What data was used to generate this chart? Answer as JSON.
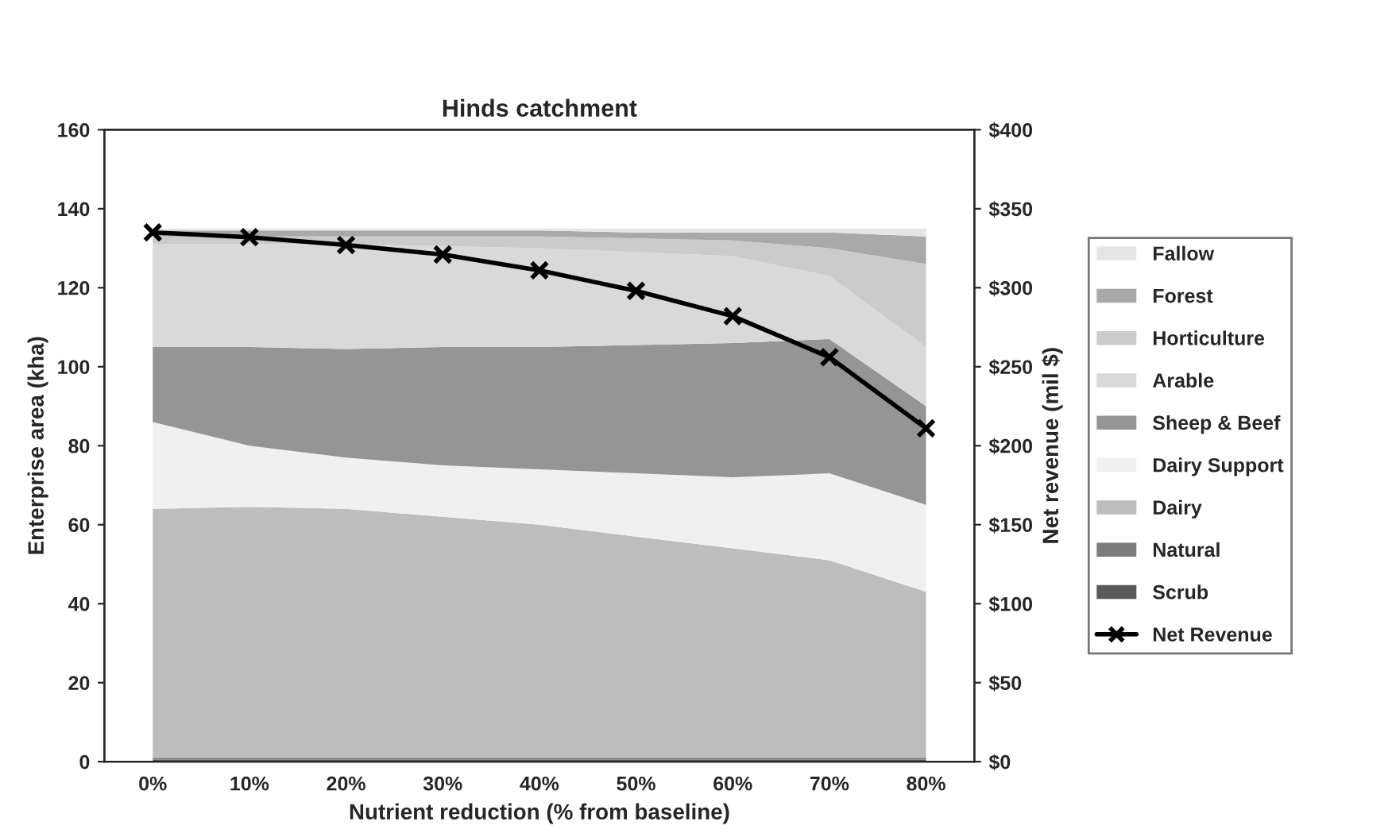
{
  "chart_data": {
    "type": "area",
    "stacked": true,
    "title": "Hinds catchment",
    "xlabel": "Nutrient reduction (% from baseline)",
    "ylabel": "Enterprise area (kha)",
    "y2label": "Net revenue (mil $)",
    "categories": [
      "0%",
      "10%",
      "20%",
      "30%",
      "40%",
      "50%",
      "60%",
      "70%",
      "80%"
    ],
    "ylim": [
      0,
      160
    ],
    "yticks": [
      0,
      20,
      40,
      60,
      80,
      100,
      120,
      140,
      160
    ],
    "y2lim": [
      0,
      400
    ],
    "y2ticks": [
      {
        "value": 0,
        "label": "$0"
      },
      {
        "value": 50,
        "label": "$50"
      },
      {
        "value": 100,
        "label": "$100"
      },
      {
        "value": 150,
        "label": "$150"
      },
      {
        "value": 200,
        "label": "$200"
      },
      {
        "value": 250,
        "label": "$250"
      },
      {
        "value": 300,
        "label": "$300"
      },
      {
        "value": 350,
        "label": "$350"
      },
      {
        "value": 400,
        "label": "$400"
      }
    ],
    "legend": "right",
    "grid": false,
    "series": [
      {
        "name": "Scrub",
        "color": "#5a5a5a",
        "values": [
          0.5,
          0.5,
          0.5,
          0.5,
          0.5,
          0.5,
          0.5,
          0.5,
          0.5
        ]
      },
      {
        "name": "Natural",
        "color": "#7c7c7c",
        "values": [
          0.5,
          0.5,
          0.5,
          0.5,
          0.5,
          0.5,
          0.5,
          0.5,
          0.5
        ]
      },
      {
        "name": "Dairy",
        "color": "#bdbdbd",
        "values": [
          63,
          63.5,
          63,
          61,
          59,
          56,
          53,
          50,
          42
        ]
      },
      {
        "name": "Dairy Support",
        "color": "#f0f0f0",
        "values": [
          22,
          15.5,
          13,
          13,
          14,
          16,
          18,
          22,
          22
        ]
      },
      {
        "name": "Sheep & Beef",
        "color": "#959595",
        "values": [
          19,
          25,
          27.5,
          30,
          31,
          32.5,
          34,
          34,
          25
        ]
      },
      {
        "name": "Arable",
        "color": "#d9d9d9",
        "values": [
          26,
          26,
          26.5,
          25.5,
          25,
          23.5,
          22,
          16,
          15
        ]
      },
      {
        "name": "Horticulture",
        "color": "#cbcbcb",
        "values": [
          2,
          2,
          2,
          2.5,
          3,
          3.5,
          4,
          7,
          21
        ]
      },
      {
        "name": "Forest",
        "color": "#a9a9a9",
        "values": [
          1.5,
          1.5,
          1.5,
          1.5,
          1.5,
          1.5,
          2,
          4,
          7
        ]
      },
      {
        "name": "Fallow",
        "color": "#e5e5e5",
        "values": [
          0.5,
          0.5,
          0.5,
          0.5,
          0.5,
          1,
          1,
          1,
          2
        ]
      },
      {
        "name": "Net Revenue",
        "type": "line",
        "axis": "y2",
        "color": "#000000",
        "marker": "cross",
        "line_style": "solid",
        "values": [
          335,
          332,
          327,
          321,
          311,
          298,
          282,
          256,
          211
        ]
      }
    ]
  }
}
